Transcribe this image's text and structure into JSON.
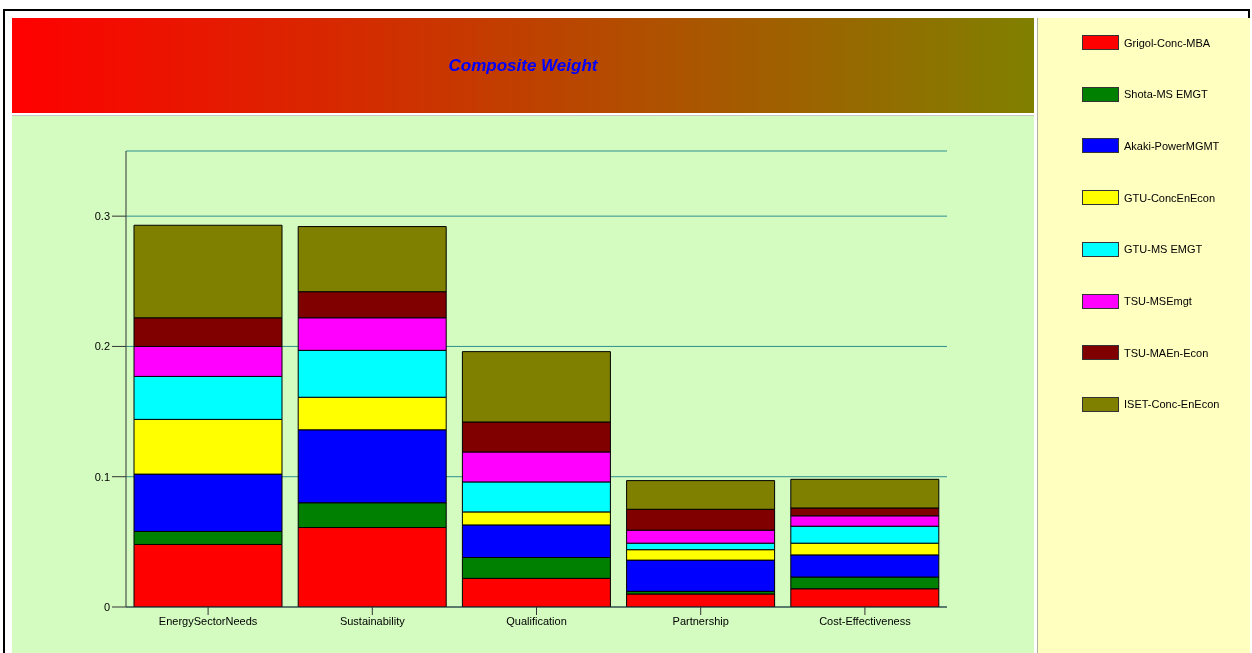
{
  "chart_data": {
    "type": "bar",
    "title": "Composite Weight",
    "categories": [
      "EnergySectorNeeds",
      "Sustainability",
      "Qualification",
      "Partnership",
      "Cost-Effectiveness"
    ],
    "series": [
      {
        "name": "Grigol-Conc-MBA",
        "color": "#ff0000",
        "values": [
          0.048,
          0.061,
          0.022,
          0.01,
          0.014
        ]
      },
      {
        "name": "Shota-MS EMGT",
        "color": "#008000",
        "values": [
          0.01,
          0.019,
          0.016,
          0.002,
          0.009
        ]
      },
      {
        "name": "Akaki-PowerMGMT",
        "color": "#0000ff",
        "values": [
          0.044,
          0.056,
          0.025,
          0.024,
          0.017
        ]
      },
      {
        "name": "GTU-ConcEnEcon",
        "color": "#ffff00",
        "values": [
          0.042,
          0.025,
          0.01,
          0.008,
          0.009
        ]
      },
      {
        "name": "GTU-MS EMGT",
        "color": "#00ffff",
        "values": [
          0.033,
          0.036,
          0.023,
          0.005,
          0.013
        ]
      },
      {
        "name": "TSU-MSEmgt",
        "color": "#ff00ff",
        "values": [
          0.023,
          0.025,
          0.023,
          0.01,
          0.008
        ]
      },
      {
        "name": "TSU-MAEn-Econ",
        "color": "#800000",
        "values": [
          0.022,
          0.02,
          0.023,
          0.016,
          0.006
        ]
      },
      {
        "name": "ISET-Conc-EnEcon",
        "color": "#808000",
        "values": [
          0.071,
          0.05,
          0.054,
          0.022,
          0.022
        ]
      }
    ],
    "stacked": true,
    "ylim": [
      0,
      0.35
    ],
    "yticks": [
      0,
      0.1,
      0.2,
      0.3
    ],
    "grid": "y",
    "legend": "right"
  }
}
